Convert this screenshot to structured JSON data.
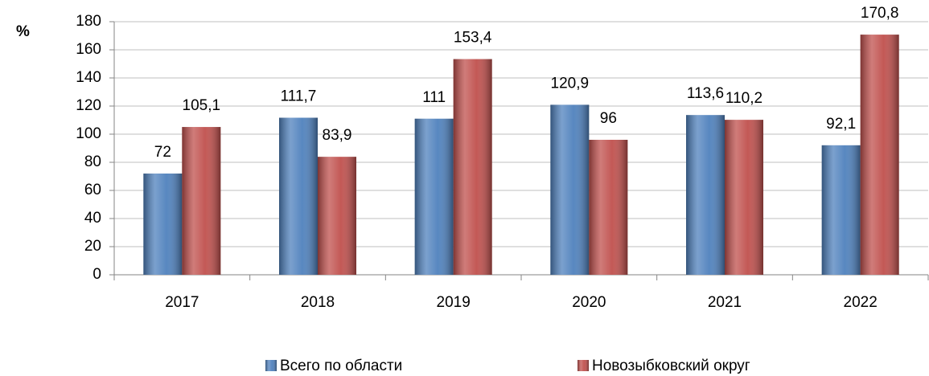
{
  "chart_data": {
    "type": "bar",
    "y_label": "%",
    "categories": [
      "2017",
      "2018",
      "2019",
      "2020",
      "2021",
      "2022"
    ],
    "series": [
      {
        "name": "Всего по области",
        "color": "#4f81bd",
        "values": [
          72,
          111.7,
          111,
          120.9,
          113.6,
          92.1
        ],
        "value_labels": [
          "72",
          "111,7",
          "111",
          "120,9",
          "113,6",
          "92,1"
        ]
      },
      {
        "name": "Новозыбковский округ",
        "color": "#c0504d",
        "values": [
          105.1,
          83.9,
          153.4,
          96,
          110.2,
          170.8
        ],
        "value_labels": [
          "105,1",
          "83,9",
          "153,4",
          "96",
          "110,2",
          "170,8"
        ]
      }
    ],
    "ylim": [
      0,
      180
    ],
    "yticks": [
      0,
      20,
      40,
      60,
      80,
      100,
      120,
      140,
      160,
      180
    ],
    "grid": true,
    "legend": "bottom"
  }
}
